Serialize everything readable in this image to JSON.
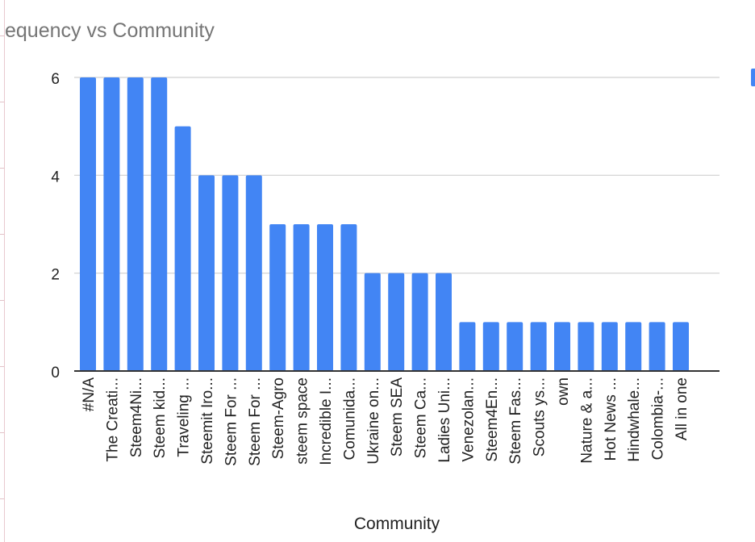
{
  "chart_data": {
    "type": "bar",
    "title": "equency vs Community",
    "xlabel": "Community",
    "ylabel": "",
    "ylim": [
      0,
      6
    ],
    "yticks": [
      0,
      2,
      4,
      6
    ],
    "grid": true,
    "legend_position": "right",
    "bar_color": "#4285f4",
    "categories": [
      "#N/A",
      "The Creati...",
      "Steem4Ni...",
      "Steem kid...",
      "Traveling ...",
      "Steemit Iro...",
      "Steem For ...",
      "Steem For ...",
      "Steem-Agro",
      "steem space",
      "Incredible I...",
      "Comunida...",
      "Ukraine on...",
      "Steem SEA",
      "Steem Ca...",
      "Ladies Uni...",
      "Venezolan...",
      "Steem4En...",
      "Steem Fas...",
      "Scouts ys...",
      "own",
      "Nature & a...",
      "Hot News ...",
      "Hindwhale...",
      "Colombia-...",
      "All in one"
    ],
    "values": [
      6,
      6,
      6,
      6,
      5,
      4,
      4,
      4,
      3,
      3,
      3,
      3,
      2,
      2,
      2,
      2,
      1,
      1,
      1,
      1,
      1,
      1,
      1,
      1,
      1,
      1
    ]
  }
}
